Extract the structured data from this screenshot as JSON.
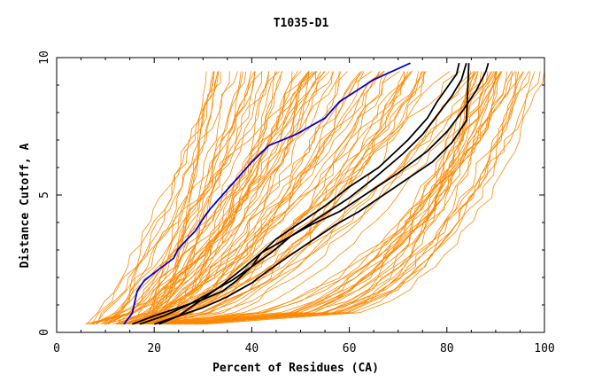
{
  "chart_data": {
    "type": "line",
    "title": "T1035-D1",
    "xlabel": "Percent of Residues (CA)",
    "ylabel": "Distance Cutoff, A",
    "xlim": [
      0,
      100
    ],
    "ylim": [
      0,
      10
    ],
    "x_ticks": [
      0,
      20,
      40,
      60,
      80,
      100
    ],
    "y_ticks": [
      0,
      5,
      10
    ],
    "grid": false,
    "legend": "none",
    "colors": {
      "background_models": "#ff8800",
      "highlight_blue": "#0000dd",
      "highlight_black": "#000000",
      "axes": "#000000"
    },
    "background_band_count": 110,
    "highlight_series": [
      {
        "color": "#0000dd",
        "x": [
          13.8,
          15.5,
          16.5,
          18.0,
          21.0,
          24.0,
          24.8,
          26.8,
          28.5,
          29.5,
          31.5,
          34.0,
          36.5,
          40.0,
          43.5,
          49.0,
          55.0,
          58.0,
          61.5,
          65.0,
          70.0,
          72.5
        ],
        "y": [
          0.3,
          0.7,
          1.5,
          1.9,
          2.3,
          2.7,
          3.0,
          3.4,
          3.7,
          4.0,
          4.5,
          5.0,
          5.5,
          6.2,
          6.8,
          7.2,
          7.8,
          8.4,
          8.8,
          9.2,
          9.6,
          9.8
        ]
      },
      {
        "color": "#000000",
        "x": [
          21.0,
          25.0,
          29.0,
          33.0,
          38.0,
          42.0,
          45.0,
          50.0,
          55.0,
          60.0,
          66.0,
          72.0,
          76.0,
          78.0,
          80.0,
          82.0,
          82.5
        ],
        "y": [
          0.3,
          0.6,
          1.1,
          1.6,
          2.3,
          2.9,
          3.4,
          4.0,
          4.6,
          5.3,
          6.0,
          7.0,
          7.8,
          8.4,
          8.9,
          9.4,
          9.8
        ]
      },
      {
        "color": "#000000",
        "x": [
          17.0,
          22.0,
          27.0,
          32.0,
          36.0,
          40.0,
          44.0,
          48.0,
          54.0,
          60.0,
          65.0,
          71.0,
          75.0,
          78.0,
          81.0,
          83.0,
          84.0
        ],
        "y": [
          0.3,
          0.6,
          1.0,
          1.5,
          1.9,
          2.4,
          2.9,
          3.5,
          4.2,
          4.9,
          5.6,
          6.5,
          7.2,
          7.9,
          8.6,
          9.2,
          9.8
        ]
      },
      {
        "color": "#000000",
        "x": [
          15.5,
          20.0,
          25.0,
          30.0,
          34.0,
          37.0,
          40.0,
          42.0,
          46.0,
          52.0,
          58.0,
          64.0,
          70.0,
          76.0,
          80.0,
          83.0,
          86.0,
          88.0,
          88.5
        ],
        "y": [
          0.3,
          0.6,
          0.9,
          1.2,
          1.5,
          1.9,
          2.4,
          2.9,
          3.3,
          3.9,
          4.4,
          5.1,
          5.8,
          6.6,
          7.3,
          8.0,
          8.8,
          9.5,
          9.8
        ]
      },
      {
        "color": "#000000",
        "x": [
          20.0,
          25.0,
          30.0,
          35.0,
          40.0,
          43.0,
          47.0,
          52.0,
          57.0,
          62.0,
          67.0,
          72.0,
          77.0,
          81.0,
          84.0,
          84.5
        ],
        "y": [
          0.3,
          0.6,
          0.9,
          1.3,
          1.8,
          2.2,
          2.7,
          3.3,
          3.9,
          4.4,
          5.0,
          5.6,
          6.2,
          6.9,
          7.7,
          9.8
        ]
      }
    ]
  }
}
